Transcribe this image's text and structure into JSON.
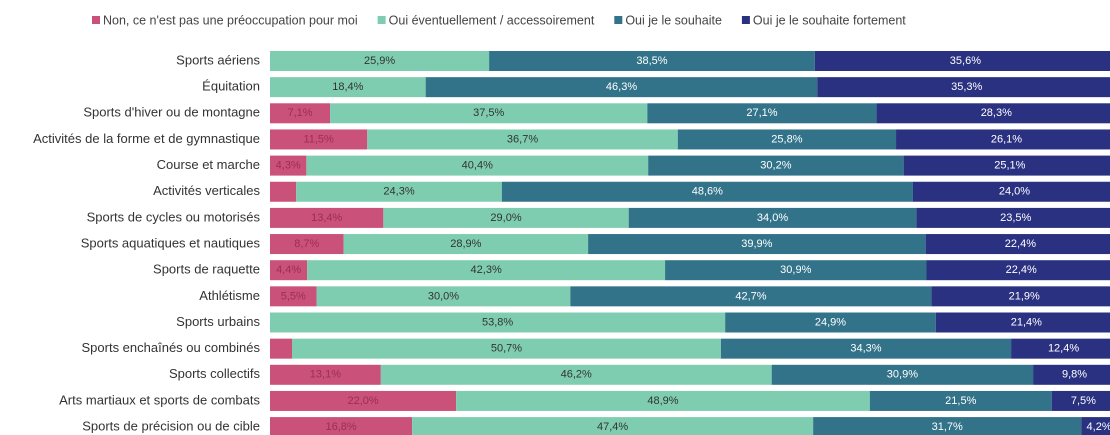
{
  "chart_data": {
    "type": "stacked_bar_horizontal",
    "categories": [
      "Sports aériens",
      "Équitation",
      "Sports d'hiver ou de montagne",
      "Activités de la forme et de gymnastique",
      "Course et marche",
      "Activités verticales",
      "Sports de cycles ou motorisés",
      "Sports aquatiques et nautiques",
      "Sports de raquette",
      "Athlétisme",
      "Sports urbains",
      "Sports enchaînés ou combinés",
      "Sports collectifs",
      "Arts martiaux et sports de combats",
      "Sports de précision ou de cible"
    ],
    "xlim": [
      0,
      100
    ],
    "series": [
      {
        "name": "Non, ce n'est pas une préoccupation pour moi",
        "color": "#c9517a",
        "label_color": "#9a2f55",
        "values": [
          0,
          0,
          7.1,
          11.5,
          4.3,
          3.1,
          13.4,
          8.7,
          4.4,
          5.5,
          0,
          2.6,
          13.1,
          22.0,
          16.8
        ],
        "value_labels": [
          null,
          null,
          "7,1%",
          "11,5%",
          "4,3%",
          null,
          "13,4%",
          "8,7%",
          "4,4%",
          "5,5%",
          null,
          null,
          "13,1%",
          "22,0%",
          "16,8%"
        ]
      },
      {
        "name": "Oui éventuellement / accessoirement",
        "color": "#7fcdb1",
        "label_color": "#333333",
        "values": [
          25.9,
          18.4,
          37.5,
          36.7,
          40.4,
          24.3,
          29.0,
          28.9,
          42.3,
          30.0,
          53.8,
          50.7,
          46.2,
          48.9,
          47.4
        ],
        "value_labels": [
          "25,9%",
          "18,4%",
          "37,5%",
          "36,7%",
          "40,4%",
          "24,3%",
          "29,0%",
          "28,9%",
          "42,3%",
          "30,0%",
          "53,8%",
          "50,7%",
          "46,2%",
          "48,9%",
          "47,4%"
        ]
      },
      {
        "name": "Oui je le souhaite",
        "color": "#33738a",
        "label_color": "#ffffff",
        "values": [
          38.5,
          46.3,
          27.1,
          25.8,
          30.2,
          48.6,
          34.0,
          39.9,
          30.9,
          42.7,
          24.9,
          34.3,
          30.9,
          21.5,
          31.7
        ],
        "value_labels": [
          "38,5%",
          "46,3%",
          "27,1%",
          "25,8%",
          "30,2%",
          "48,6%",
          "34,0%",
          "39,9%",
          "30,9%",
          "42,7%",
          "24,9%",
          "34,3%",
          "30,9%",
          "21,5%",
          "31,7%"
        ]
      },
      {
        "name": "Oui je le souhaite fortement",
        "color": "#2a3180",
        "label_color": "#ffffff",
        "values": [
          35.6,
          35.3,
          28.3,
          26.1,
          25.1,
          24.0,
          23.5,
          22.4,
          22.4,
          21.9,
          21.4,
          12.4,
          9.8,
          7.5,
          4.2
        ],
        "value_labels": [
          "35,6%",
          "35,3%",
          "28,3%",
          "26,1%",
          "25,1%",
          "24,0%",
          "23,5%",
          "22,4%",
          "22,4%",
          "21,9%",
          "21,4%",
          "12,4%",
          "9,8%",
          "7,5%",
          "4,2%"
        ]
      }
    ]
  }
}
